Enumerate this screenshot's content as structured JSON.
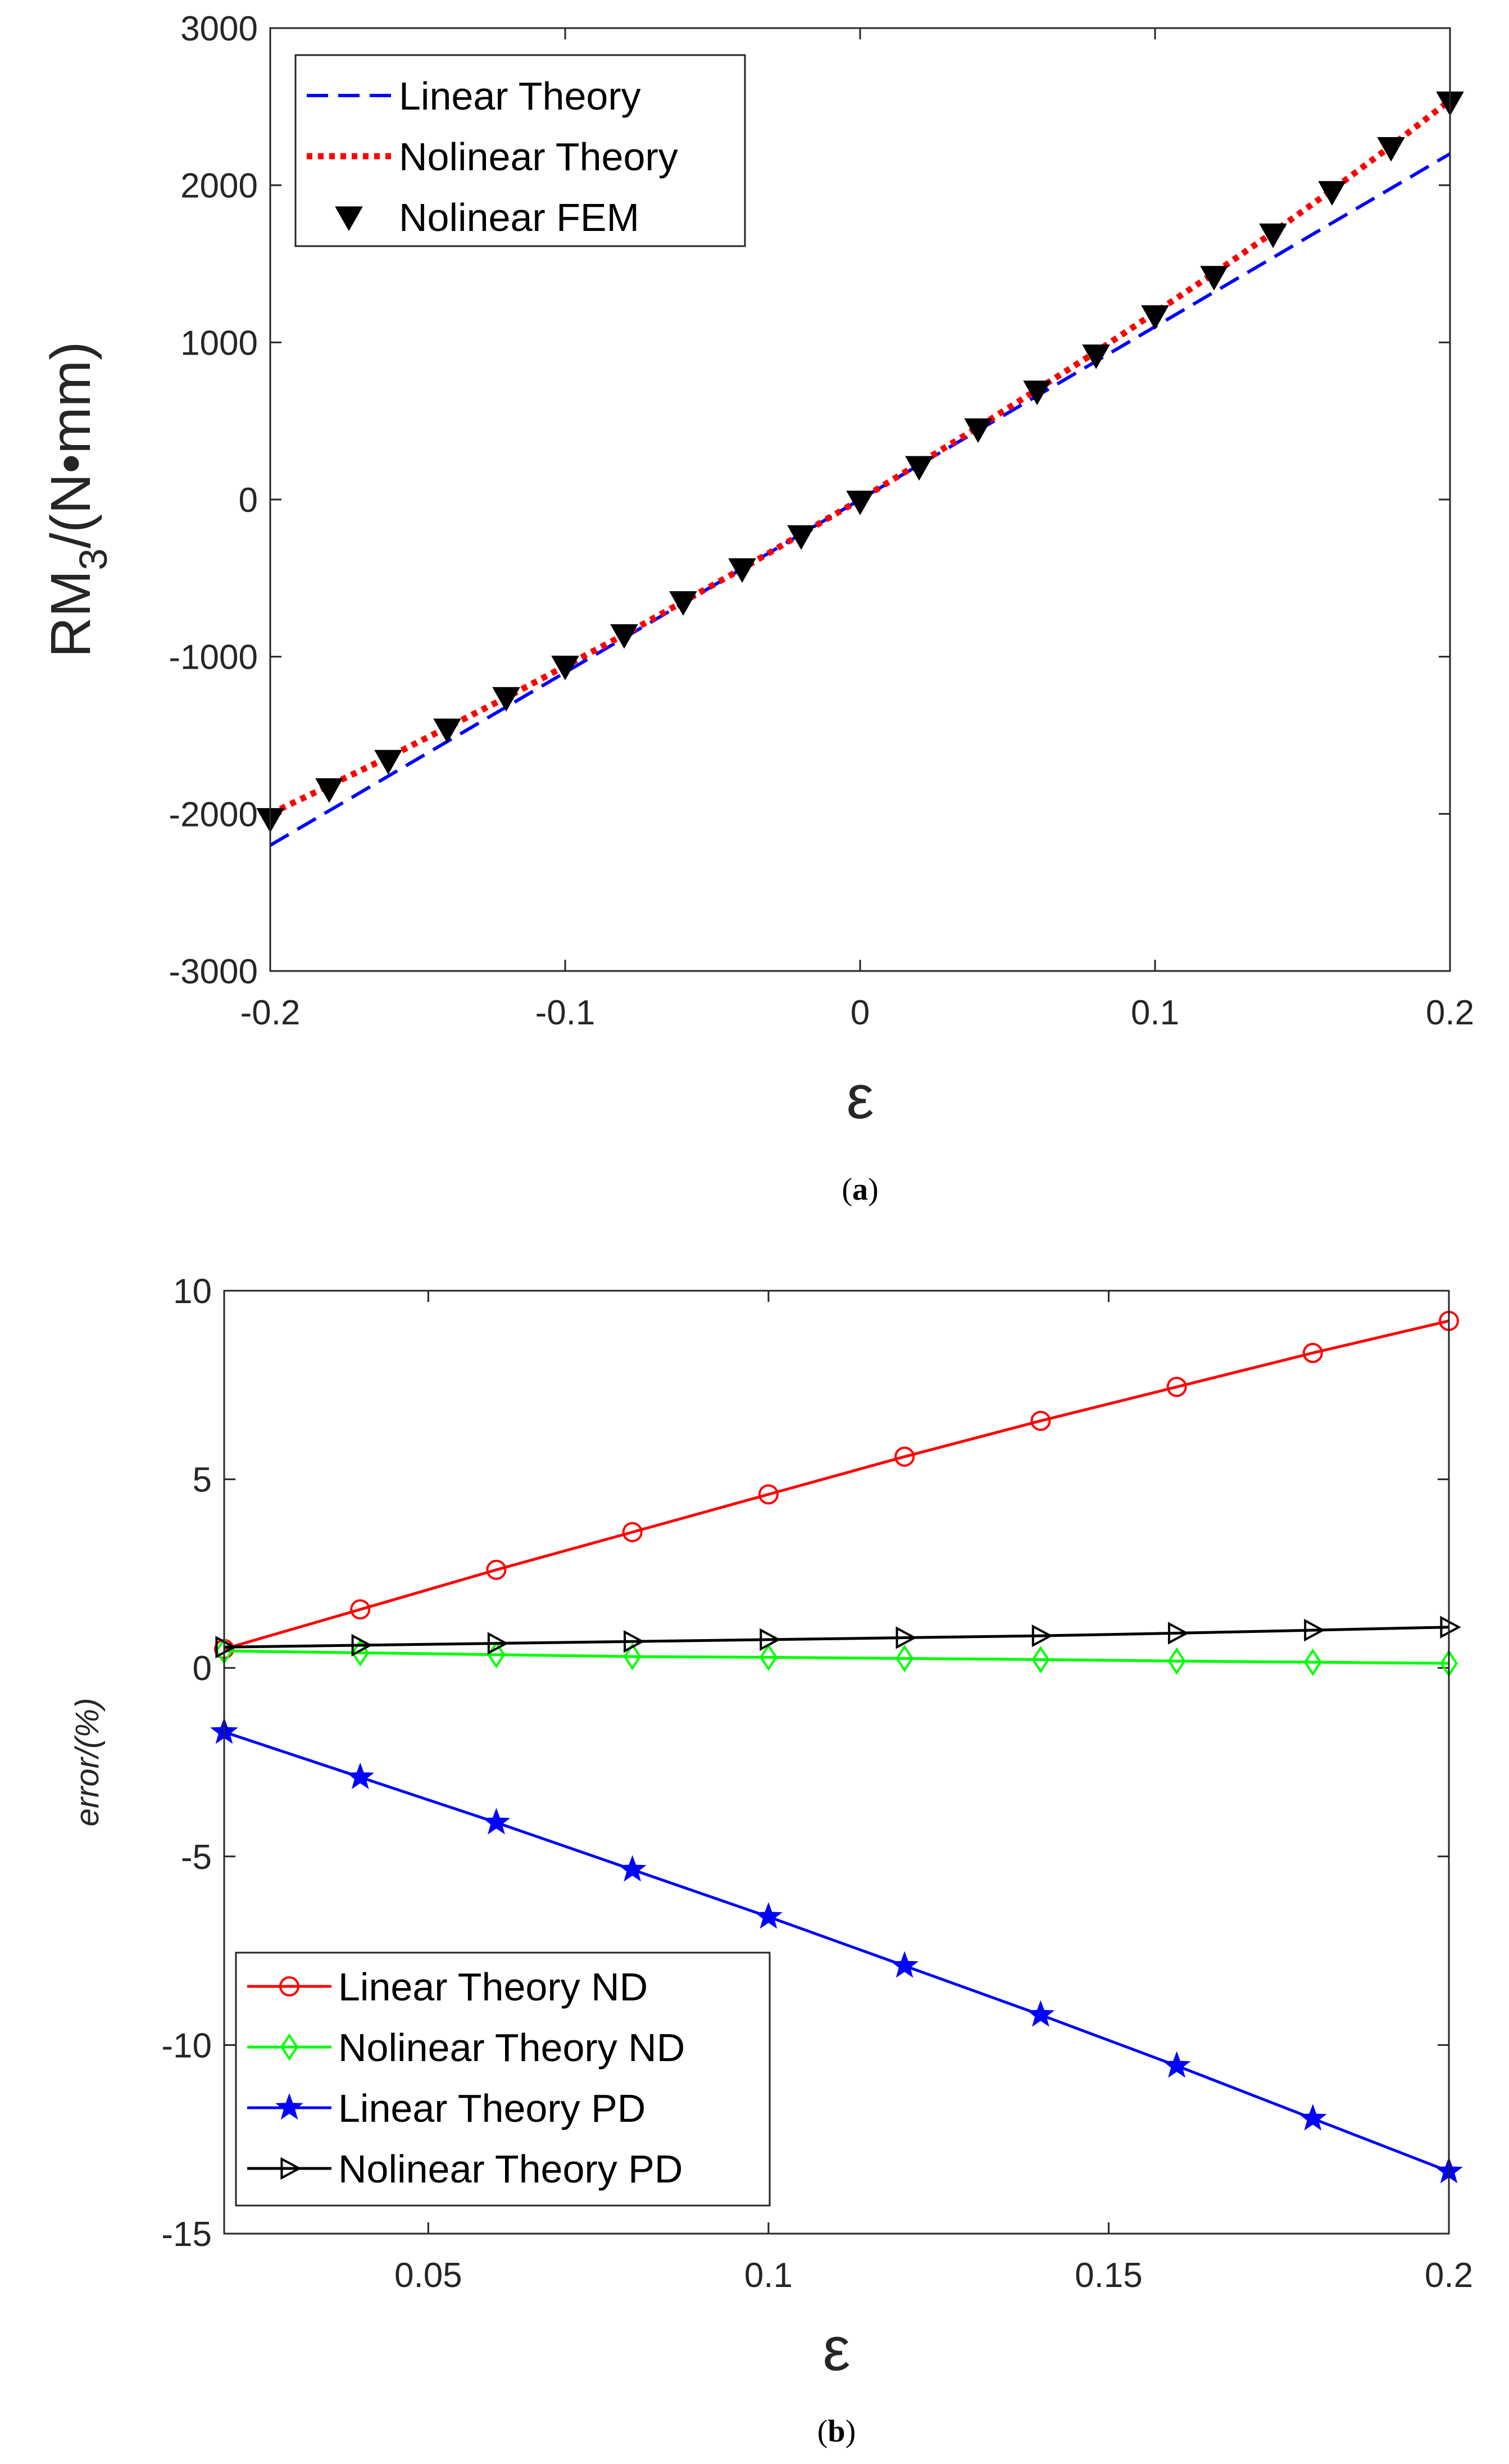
{
  "chart_data": [
    {
      "type": "line",
      "panel_label": "a",
      "title": "",
      "xlabel": "ε",
      "ylabel_main": "RM",
      "ylabel_sub": "3",
      "ylabel_tail": "/(N•mm)",
      "xlim": [
        -0.2,
        0.2
      ],
      "ylim": [
        -3000,
        3000
      ],
      "xticks": [
        -0.2,
        -0.1,
        0,
        0.1,
        0.2
      ],
      "xtick_labels": [
        "-0.2",
        "-0.1",
        "0",
        "0.1",
        "0.2"
      ],
      "yticks": [
        -3000,
        -2000,
        -1000,
        0,
        1000,
        2000,
        3000
      ],
      "ytick_labels": [
        "-3000",
        "-2000",
        "-1000",
        "0",
        "1000",
        "2000",
        "3000"
      ],
      "legend_position": "top-left",
      "series": [
        {
          "name": "Linear Theory",
          "style": "dashed",
          "color": "#0000ff",
          "x": [
            -0.2,
            0.2
          ],
          "y": [
            -2200,
            2200
          ]
        },
        {
          "name": "Nolinear Theory",
          "style": "dotted",
          "color": "#ff0000",
          "x": [
            -0.2,
            -0.18,
            -0.16,
            -0.14,
            -0.12,
            -0.1,
            -0.08,
            -0.06,
            -0.04,
            -0.02,
            0,
            0.02,
            0.04,
            0.06,
            0.08,
            0.1,
            0.12,
            0.14,
            0.16,
            0.18,
            0.2
          ],
          "y": [
            -2000,
            -1820,
            -1640,
            -1450,
            -1260,
            -1060,
            -860,
            -650,
            -440,
            -220,
            0,
            230,
            460,
            700,
            940,
            1190,
            1440,
            1700,
            1970,
            2250,
            2540
          ]
        },
        {
          "name": "Nolinear FEM",
          "style": "markers",
          "marker": "triangle-down",
          "color": "#000000",
          "x": [
            -0.2,
            -0.18,
            -0.16,
            -0.14,
            -0.12,
            -0.1,
            -0.08,
            -0.06,
            -0.04,
            -0.02,
            0,
            0.02,
            0.04,
            0.06,
            0.08,
            0.1,
            0.12,
            0.14,
            0.16,
            0.18,
            0.2
          ],
          "y": [
            -2030,
            -1840,
            -1660,
            -1460,
            -1260,
            -1060,
            -860,
            -650,
            -440,
            -230,
            -10,
            210,
            450,
            690,
            920,
            1170,
            1420,
            1690,
            1960,
            2240,
            2530
          ]
        }
      ]
    },
    {
      "type": "line",
      "panel_label": "b",
      "title": "",
      "xlabel": "ε",
      "ylabel": "error/(%)",
      "xlim": [
        0.02,
        0.2
      ],
      "ylim": [
        -15,
        10
      ],
      "xticks": [
        0.05,
        0.1,
        0.15,
        0.2
      ],
      "xtick_labels": [
        "0.05",
        "0.1",
        "0.15",
        "0.2"
      ],
      "yticks": [
        -15,
        -10,
        -5,
        0,
        5,
        10
      ],
      "ytick_labels": [
        "-15",
        "-10",
        "-5",
        "0",
        "5",
        "10"
      ],
      "legend_position": "bottom-left",
      "series": [
        {
          "name": "Linear Theory ND",
          "marker": "circle",
          "color": "#ff0000",
          "x": [
            0.02,
            0.04,
            0.06,
            0.08,
            0.1,
            0.12,
            0.14,
            0.16,
            0.18,
            0.2
          ],
          "y": [
            0.5,
            1.55,
            2.6,
            3.6,
            4.6,
            5.6,
            6.55,
            7.45,
            8.35,
            9.2
          ]
        },
        {
          "name": "Nolinear Theory ND",
          "marker": "diamond",
          "color": "#00ff00",
          "x": [
            0.02,
            0.04,
            0.06,
            0.08,
            0.1,
            0.12,
            0.14,
            0.16,
            0.18,
            0.2
          ],
          "y": [
            0.45,
            0.4,
            0.35,
            0.3,
            0.28,
            0.25,
            0.22,
            0.18,
            0.15,
            0.12
          ]
        },
        {
          "name": "Linear Theory PD",
          "marker": "star",
          "color": "#0000ff",
          "x": [
            0.02,
            0.04,
            0.06,
            0.08,
            0.1,
            0.12,
            0.14,
            0.16,
            0.18,
            0.2
          ],
          "y": [
            -1.7,
            -2.9,
            -4.1,
            -5.35,
            -6.6,
            -7.9,
            -9.2,
            -10.55,
            -11.95,
            -13.35
          ]
        },
        {
          "name": "Nolinear Theory PD",
          "marker": "triangle-right",
          "color": "#000000",
          "x": [
            0.02,
            0.04,
            0.06,
            0.08,
            0.1,
            0.12,
            0.14,
            0.16,
            0.18,
            0.2
          ],
          "y": [
            0.55,
            0.6,
            0.65,
            0.7,
            0.75,
            0.8,
            0.85,
            0.92,
            1.0,
            1.08
          ]
        }
      ]
    }
  ]
}
